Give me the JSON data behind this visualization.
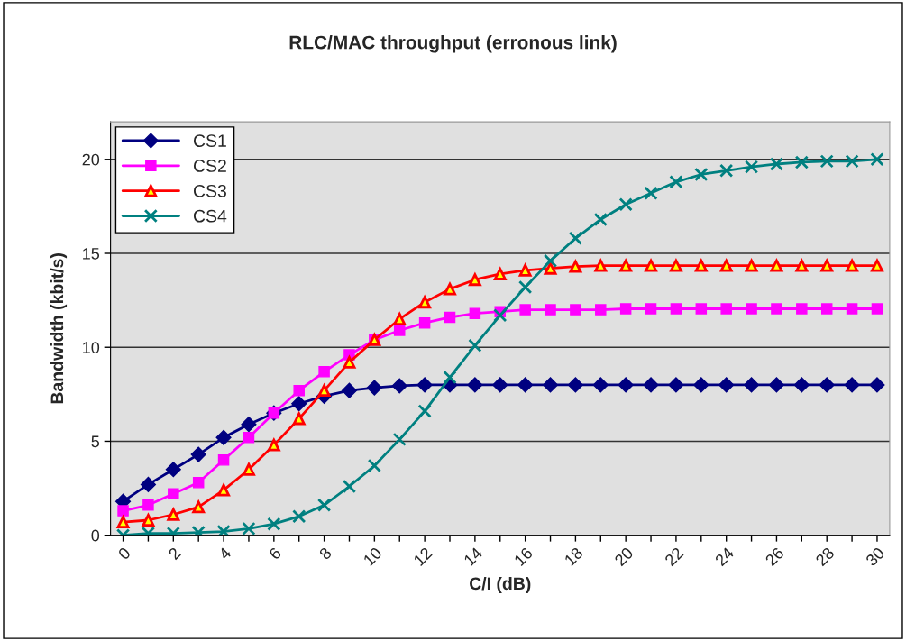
{
  "chart_data": {
    "type": "line",
    "title": "RLC/MAC throughput (erronous link)",
    "xlabel": "C/I (dB)",
    "ylabel": "Bandwidth (kbit/s)",
    "categories": [
      "0",
      null,
      "2",
      null,
      "4",
      null,
      "6",
      null,
      "8",
      null,
      "10",
      null,
      "12",
      null,
      "14",
      null,
      "16",
      null,
      "18",
      null,
      "20",
      null,
      "22",
      null,
      "24",
      null,
      "26",
      null,
      "28",
      null,
      "30"
    ],
    "series": [
      {
        "name": "CS1",
        "color": "#000080",
        "marker": "diamond",
        "values": [
          1.8,
          2.7,
          3.5,
          4.3,
          5.2,
          5.9,
          6.5,
          7.0,
          7.4,
          7.7,
          7.85,
          7.95,
          8,
          8,
          8,
          8,
          8,
          8,
          8,
          8,
          8,
          8,
          8,
          8,
          8,
          8,
          8,
          8,
          8,
          8,
          8
        ]
      },
      {
        "name": "CS2",
        "color": "#ff00ff",
        "marker": "square",
        "values": [
          1.3,
          1.6,
          2.2,
          2.8,
          4.0,
          5.2,
          6.5,
          7.7,
          8.7,
          9.6,
          10.4,
          10.9,
          11.3,
          11.6,
          11.8,
          11.9,
          12,
          12,
          12,
          12,
          12.05,
          12.05,
          12.05,
          12.05,
          12.05,
          12.05,
          12.05,
          12.05,
          12.05,
          12.05,
          12.05
        ]
      },
      {
        "name": "CS3",
        "color": "#ff0000",
        "marker": "triangle",
        "values": [
          0.7,
          0.8,
          1.1,
          1.5,
          2.4,
          3.5,
          4.8,
          6.2,
          7.7,
          9.2,
          10.4,
          11.5,
          12.4,
          13.1,
          13.6,
          13.9,
          14.1,
          14.2,
          14.3,
          14.35,
          14.35,
          14.35,
          14.35,
          14.35,
          14.35,
          14.35,
          14.35,
          14.35,
          14.35,
          14.35,
          14.35
        ]
      },
      {
        "name": "CS4",
        "color": "#008080",
        "marker": "cross",
        "values": [
          0,
          0.1,
          0.1,
          0.15,
          0.2,
          0.35,
          0.6,
          1.0,
          1.6,
          2.6,
          3.7,
          5.1,
          6.6,
          8.4,
          10.1,
          11.7,
          13.2,
          14.6,
          15.8,
          16.8,
          17.6,
          18.2,
          18.8,
          19.2,
          19.4,
          19.6,
          19.75,
          19.85,
          19.9,
          19.9,
          20.0
        ]
      }
    ],
    "ylim": [
      0,
      22
    ],
    "yticks": [
      0,
      5,
      10,
      15,
      20
    ],
    "grid": "y",
    "legend": "top left",
    "line_style": "solid"
  }
}
